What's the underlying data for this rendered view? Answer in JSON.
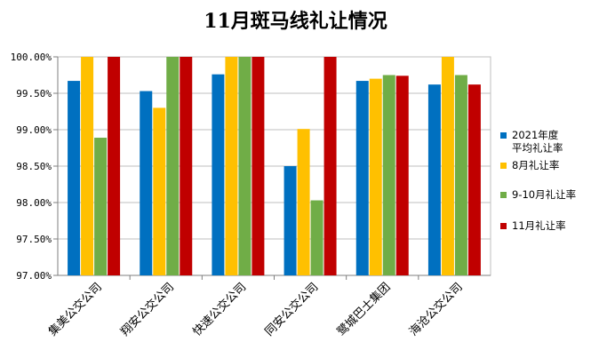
{
  "chart_data": {
    "type": "bar",
    "title": "11月斑马线礼让情况",
    "categories": [
      "集美公交公司",
      "翔安公交公司",
      "快速公交公司",
      "同安公交公司",
      "鹭城巴士集团",
      "海沧公交公司"
    ],
    "series": [
      {
        "name": "2021年度平均礼让率",
        "name_lines": [
          "2021年度",
          "平均礼让率"
        ],
        "color": "#0070C0",
        "values": [
          99.67,
          99.53,
          99.76,
          98.5,
          99.67,
          99.62
        ]
      },
      {
        "name": "8月礼让率",
        "name_lines": [
          "8月礼让率"
        ],
        "color": "#FFC000",
        "values": [
          100.0,
          99.3,
          100.0,
          99.01,
          99.7,
          100.0
        ]
      },
      {
        "name": "9-10月礼让率",
        "name_lines": [
          "9-10月礼让率"
        ],
        "color": "#70AD47",
        "values": [
          98.89,
          100.0,
          100.0,
          98.03,
          99.75,
          99.75
        ]
      },
      {
        "name": "11月礼让率",
        "name_lines": [
          "11月礼让率"
        ],
        "color": "#C00000",
        "values": [
          100.0,
          100.0,
          100.0,
          100.0,
          99.74,
          99.62
        ]
      }
    ],
    "ylim": [
      97.0,
      100.0
    ],
    "yticks": [
      {
        "value": 97.0,
        "label": "97.00%"
      },
      {
        "value": 97.5,
        "label": "97.50%"
      },
      {
        "value": 98.0,
        "label": "98.00%"
      },
      {
        "value": 98.5,
        "label": "98.50%"
      },
      {
        "value": 99.0,
        "label": "99.00%"
      },
      {
        "value": 99.5,
        "label": "99.50%"
      },
      {
        "value": 100.0,
        "label": "100.00%"
      }
    ],
    "grid": true,
    "legend": "right"
  }
}
